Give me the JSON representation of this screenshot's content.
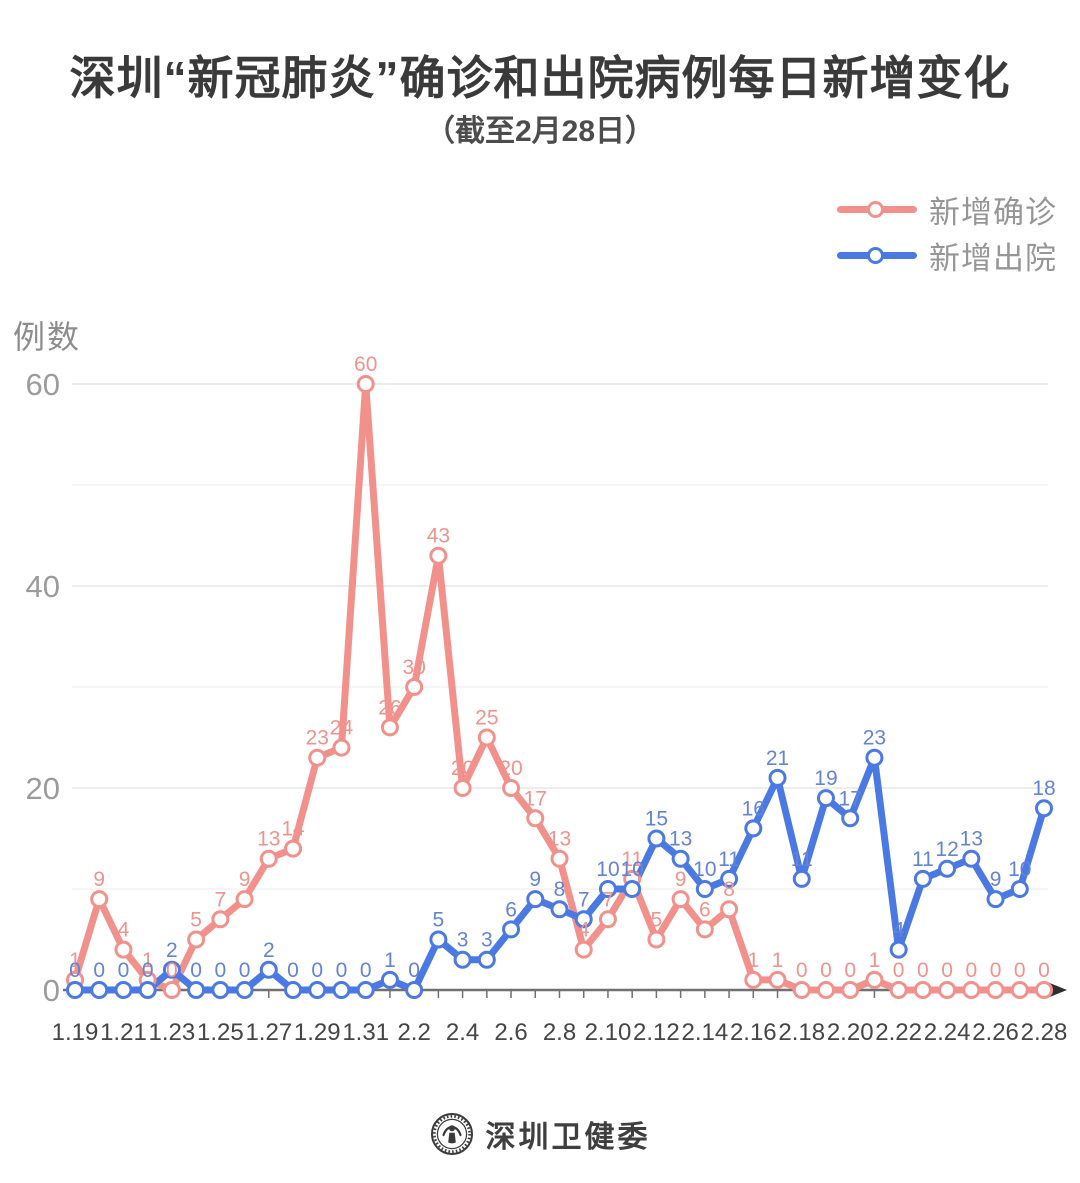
{
  "title": "深圳“新冠肺炎”确诊和出院病例每日新增变化",
  "subtitle": "（截至2月28日）",
  "y_axis_label": "例数",
  "legend": [
    {
      "label": "新增确诊",
      "color": "#f2918b"
    },
    {
      "label": "新增出院",
      "color": "#4b79e3"
    }
  ],
  "footer": {
    "source": "深圳卫健委",
    "logo": "shenzhen-health-commission-seal"
  },
  "chart_data": {
    "type": "line",
    "title": "深圳“新冠肺炎”确诊和出院病例每日新增变化（截至2月28日）",
    "xlabel": "",
    "ylabel": "例数",
    "ylim": [
      0,
      62
    ],
    "yticks": [
      0,
      20,
      40,
      60
    ],
    "grid_step": 10,
    "grid": true,
    "point_labels": true,
    "legend_position": "top-right",
    "x_label_every": 2,
    "categories": [
      "1.19",
      "1.20",
      "1.21",
      "1.22",
      "1.23",
      "1.24",
      "1.25",
      "1.26",
      "1.27",
      "1.28",
      "1.29",
      "1.30",
      "1.31",
      "2.1",
      "2.2",
      "2.3",
      "2.4",
      "2.5",
      "2.6",
      "2.7",
      "2.8",
      "2.9",
      "2.10",
      "2.11",
      "2.12",
      "2.13",
      "2.14",
      "2.15",
      "2.16",
      "2.17",
      "2.18",
      "2.19",
      "2.20",
      "2.21",
      "2.22",
      "2.23",
      "2.24",
      "2.25",
      "2.26",
      "2.27",
      "2.28"
    ],
    "series": [
      {
        "name": "新增确诊",
        "color": "#f2918b",
        "label_color": "#f0938d",
        "values": [
          1,
          9,
          4,
          1,
          0,
          5,
          7,
          9,
          13,
          14,
          23,
          24,
          60,
          26,
          30,
          43,
          20,
          25,
          20,
          17,
          13,
          4,
          7,
          11,
          5,
          9,
          6,
          8,
          1,
          1,
          0,
          0,
          0,
          1,
          0,
          0,
          0,
          0,
          0,
          0,
          0
        ]
      },
      {
        "name": "新增出院",
        "color": "#4b79e3",
        "label_color": "#6383d6",
        "values": [
          0,
          0,
          0,
          0,
          2,
          0,
          0,
          0,
          2,
          0,
          0,
          0,
          0,
          1,
          0,
          5,
          3,
          3,
          6,
          9,
          8,
          7,
          10,
          10,
          15,
          13,
          10,
          11,
          16,
          21,
          11,
          19,
          17,
          23,
          4,
          11,
          12,
          13,
          9,
          10,
          18
        ]
      }
    ]
  }
}
